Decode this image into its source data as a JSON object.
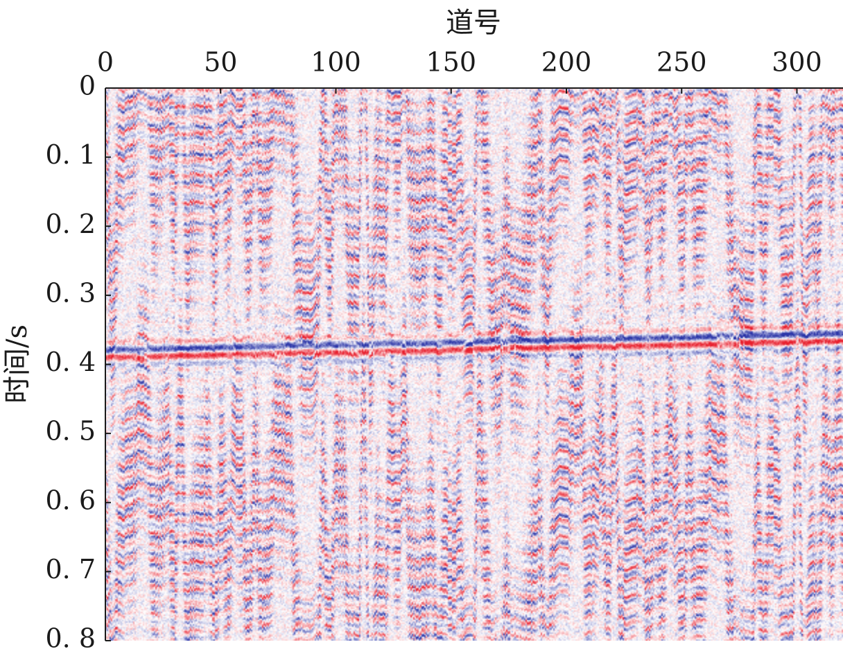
{
  "chart_data": {
    "type": "heatmap",
    "title": "",
    "xlabel": "道号",
    "ylabel": "时间/s",
    "x_axis_position": "top",
    "xlim": [
      0,
      320
    ],
    "ylim": [
      0,
      0.8
    ],
    "y_inverted": true,
    "x_ticks": [
      0,
      50,
      100,
      150,
      200,
      250,
      300
    ],
    "x_tick_labels": [
      "0",
      "50",
      "100",
      "150",
      "200",
      "250",
      "300"
    ],
    "y_ticks": [
      0,
      0.1,
      0.2,
      0.3,
      0.4,
      0.5,
      0.6,
      0.7,
      0.8
    ],
    "y_tick_labels": [
      "0",
      "0. 1",
      "0. 2",
      "0. 3",
      "0. 4",
      "0. 5",
      "0. 6",
      "0. 7",
      "0. 8"
    ],
    "colormap": {
      "negative": "#2b35a8",
      "zero": "#ffffff",
      "positive": "#e8202e"
    },
    "grid": false,
    "legend": "none"
  }
}
